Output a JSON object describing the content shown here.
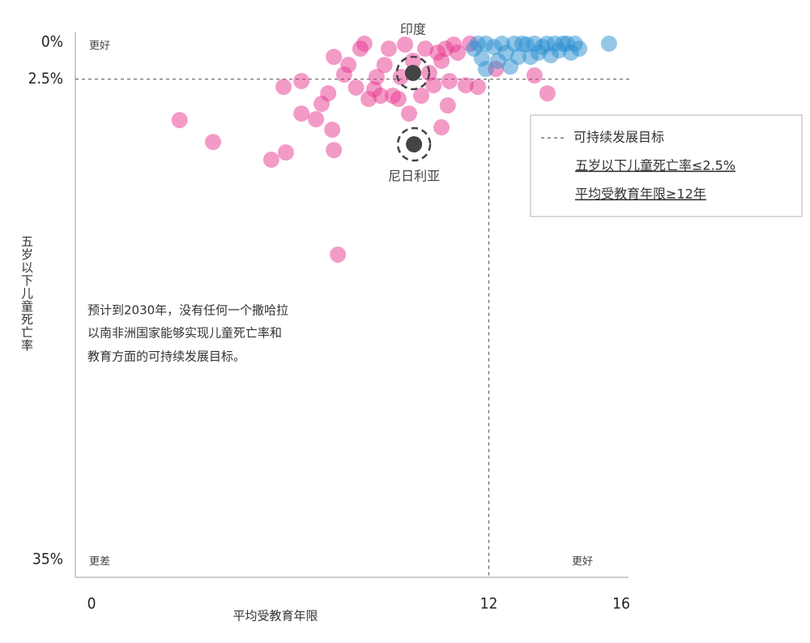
{
  "chart_data": {
    "type": "scatter",
    "xlabel": "平均受教育年限",
    "ylabel": "五岁以下儿童死亡率",
    "xlim": [
      0,
      16
    ],
    "ylim": [
      -0.66,
      35
    ],
    "y_inverted": true,
    "xticks": [
      0,
      12,
      16
    ],
    "yticks": [
      {
        "value": 0,
        "label": "0%"
      },
      {
        "value": 2.5,
        "label": "2.5%"
      },
      {
        "value": 35,
        "label": "35%"
      }
    ],
    "target_x": 12,
    "target_y": 2.5,
    "corner_labels": {
      "top_left": "更好",
      "bottom_left": "更差",
      "bottom_right": "更好"
    },
    "note": [
      "预计到2030年，没有任何一个撒哈拉",
      "以南非洲国家能够实现儿童死亡率和",
      "教育方面的可持续发展目标。"
    ],
    "legend": {
      "title": "可持续发展目标",
      "items": [
        "五岁以下儿童死亡率≤2.5%",
        "平均受教育年限≥12年"
      ]
    },
    "series": [
      {
        "color": "#e8388f",
        "x": [
          2.66,
          3.67,
          5.43,
          5.87,
          7.44,
          7.32,
          7.27,
          5.8,
          6.34,
          6.34,
          6.78,
          6.95,
          7.15,
          7.32,
          7.76,
          7.63,
          7.99,
          8.24,
          8.12,
          8.37,
          8.61,
          8.85,
          8.98,
          9.1,
          9.34,
          9.47,
          9.59,
          9.96,
          10.2,
          10.33,
          10.57,
          10.69,
          10.81,
          10.76,
          10.57,
          11.06,
          11.3,
          11.67,
          12.21,
          13.38,
          13.77,
          8.73,
          8.54,
          9.71,
          10.08,
          10.45,
          10.94,
          11.43,
          9.27
        ],
        "values": [
          5.27,
          6.75,
          7.95,
          7.46,
          14.37,
          7.3,
          5.92,
          3.02,
          2.63,
          4.83,
          5.21,
          4.17,
          3.46,
          0.99,
          1.54,
          2.19,
          3.07,
          0.1,
          0.44,
          3.84,
          2.36,
          1.54,
          0.44,
          3.62,
          2.36,
          0.16,
          4.83,
          3.62,
          2.08,
          2.91,
          1.26,
          0.44,
          2.63,
          4.28,
          5.76,
          0.71,
          2.91,
          3.02,
          1.81,
          2.25,
          3.46,
          3.62,
          3.18,
          1.26,
          0.44,
          0.71,
          0.16,
          0.1,
          3.84
        ]
      },
      {
        "color": "#2a8fd0",
        "x": [
          11.55,
          11.79,
          11.91,
          12.15,
          12.4,
          12.52,
          12.77,
          12.89,
          13.14,
          13.38,
          13.5,
          13.75,
          13.99,
          14.12,
          14.36,
          14.6,
          14.73,
          14.48,
          14.24,
          13.26,
          12.65,
          11.91,
          12.28,
          13.01,
          13.62,
          13.87,
          15.63,
          11.67
        ],
        "values": [
          0.44,
          1.1,
          0.1,
          0.33,
          0.1,
          0.71,
          0.1,
          0.99,
          0.16,
          0.1,
          0.71,
          0.1,
          0.1,
          0.55,
          0.1,
          0.1,
          0.44,
          0.71,
          0.1,
          0.99,
          1.65,
          1.81,
          1.26,
          0.1,
          0.33,
          0.88,
          0.1,
          0.1
        ]
      }
    ],
    "highlights": [
      {
        "name": "印度",
        "x": 9.71,
        "value": 2.08
      },
      {
        "name": "尼日利亚",
        "x": 9.74,
        "value": 6.91
      }
    ]
  }
}
